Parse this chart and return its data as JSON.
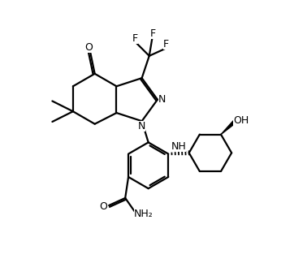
{
  "bg": "#ffffff",
  "lc": "#000000",
  "lw": 1.6,
  "fs": 9.0,
  "dpi": 100,
  "fw": 3.78,
  "fh": 3.4,
  "xl": [
    -0.8,
    8.5
  ],
  "yl": [
    0.5,
    9.8
  ]
}
